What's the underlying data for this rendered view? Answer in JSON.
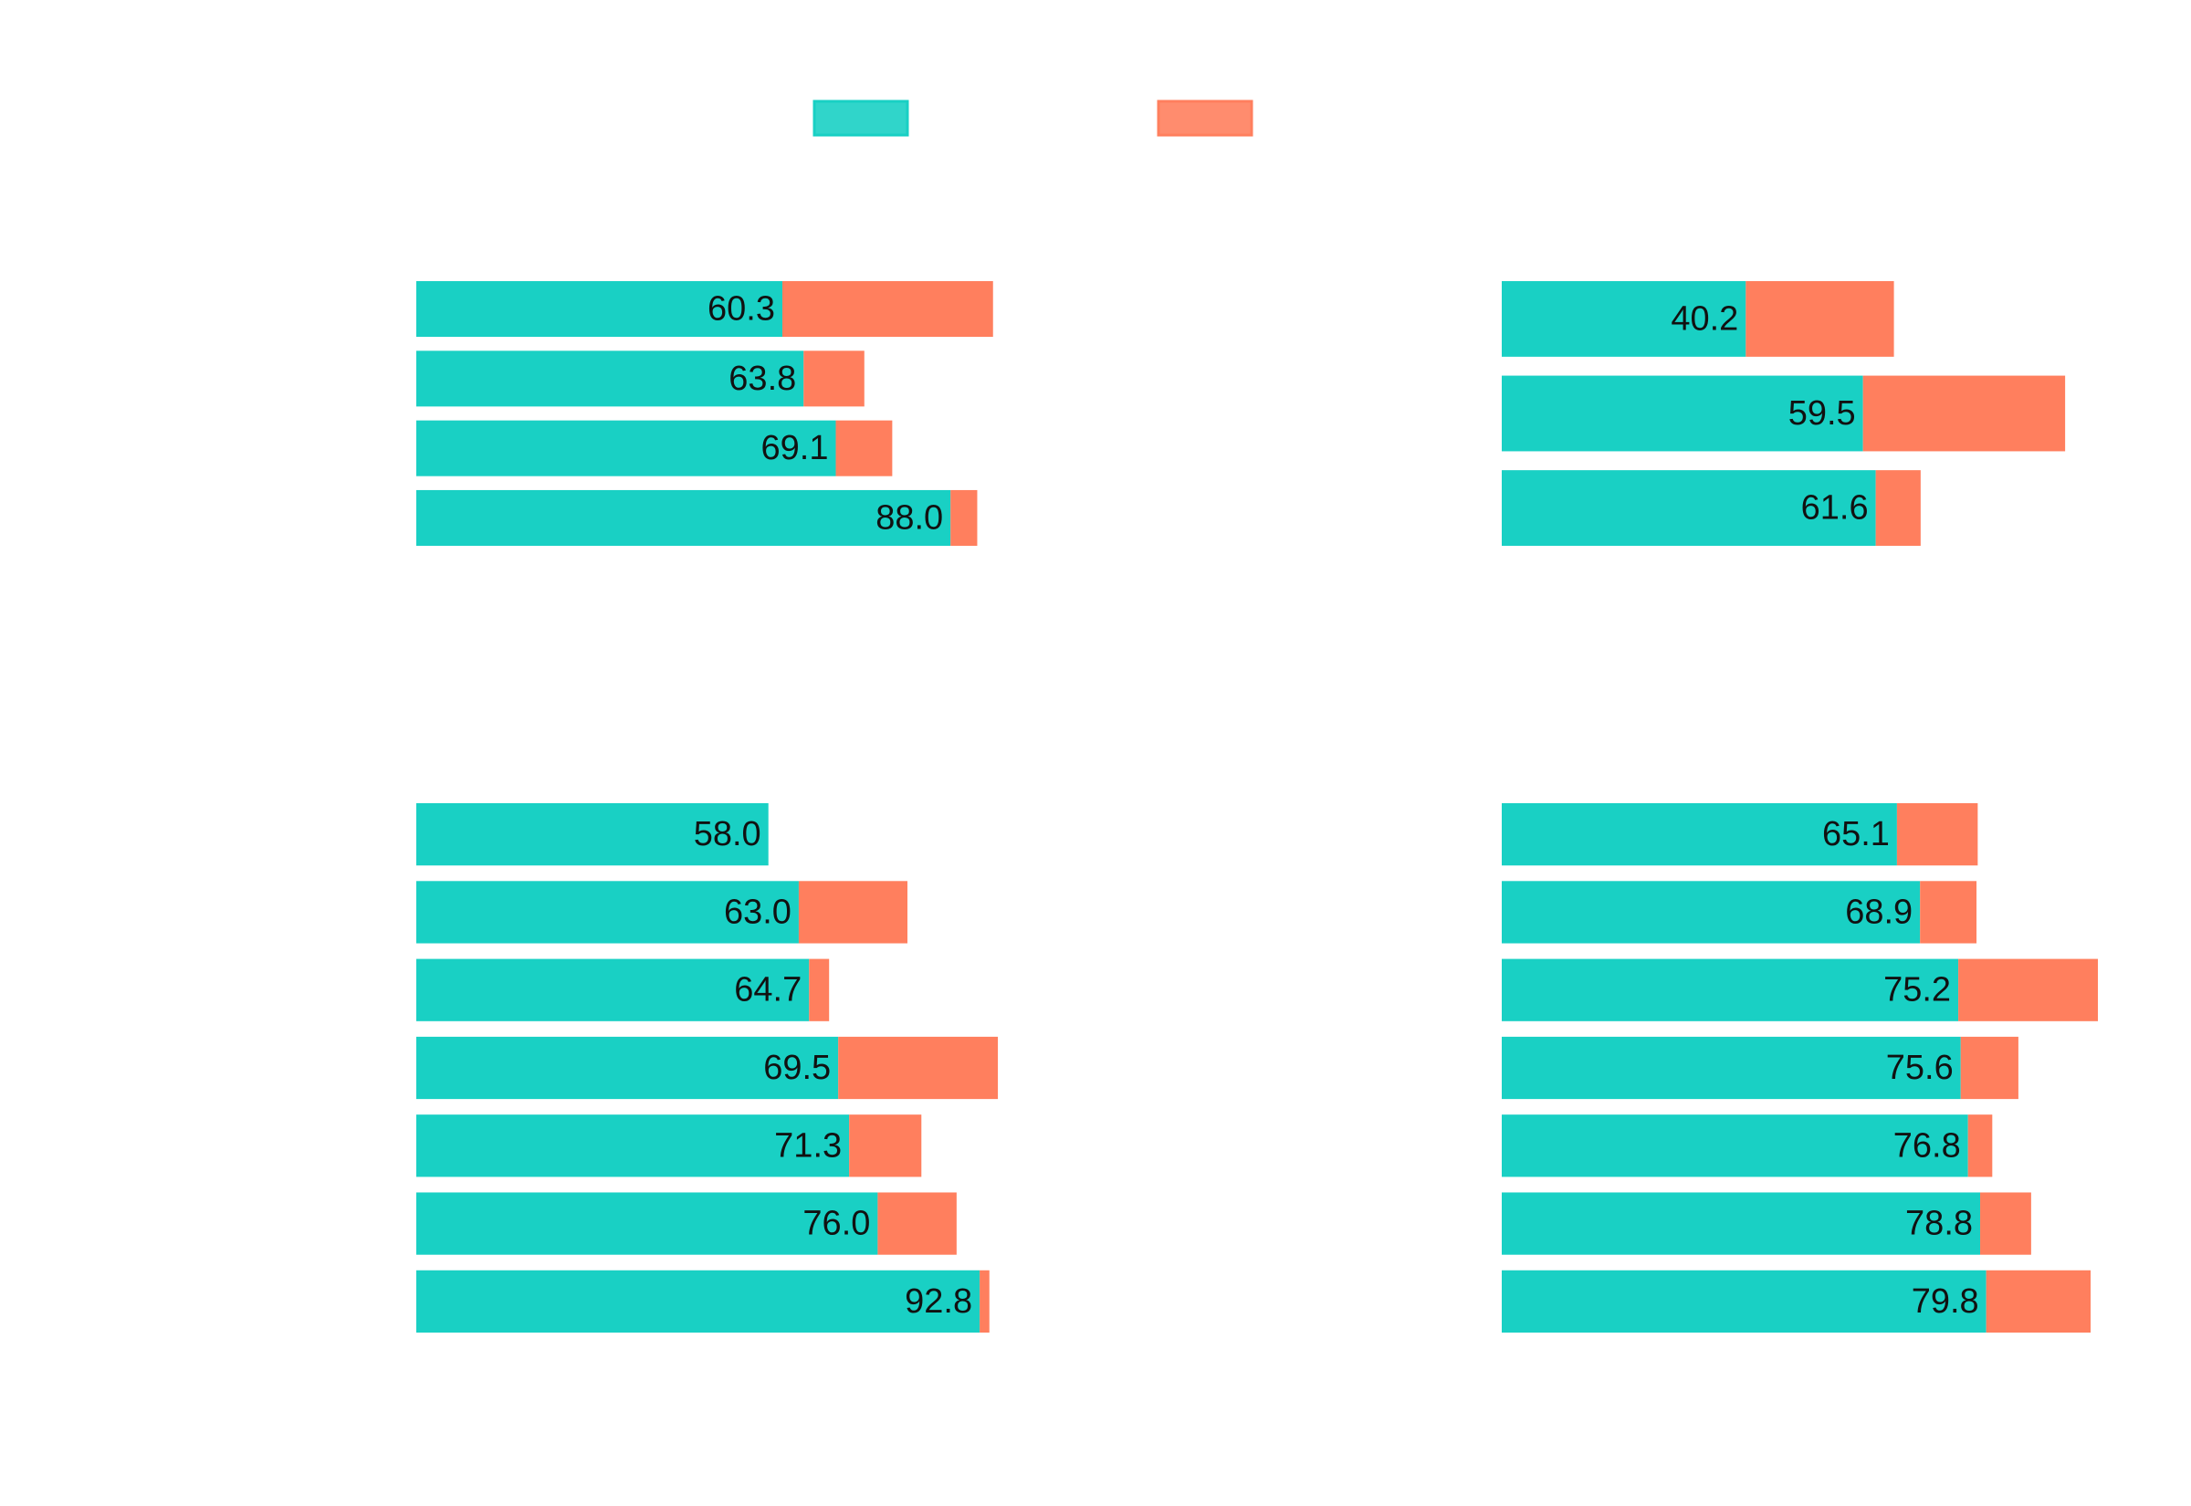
{
  "chart_data": [
    {
      "type": "bar",
      "orientation": "horizontal",
      "stacked": true,
      "xlim": [
        0,
        100
      ],
      "series": [
        {
          "color": "#19d0c4",
          "values": [
            60.3,
            63.8,
            69.1,
            88.0
          ],
          "value_labels": [
            "60.3",
            "63.8",
            "69.1",
            "88.0"
          ]
        },
        {
          "color": "#ff7f5e",
          "values": [
            34.7,
            10.0,
            9.3,
            4.4
          ]
        }
      ]
    },
    {
      "type": "bar",
      "orientation": "horizontal",
      "stacked": true,
      "xlim": [
        0,
        100
      ],
      "series": [
        {
          "color": "#19d0c4",
          "values": [
            40.2,
            59.5,
            61.6
          ],
          "value_labels": [
            "40.2",
            "59.5",
            "61.6"
          ]
        },
        {
          "color": "#ff7f5e",
          "values": [
            24.4,
            33.3,
            7.4
          ]
        }
      ]
    },
    {
      "type": "bar",
      "orientation": "horizontal",
      "stacked": true,
      "xlim": [
        0,
        100
      ],
      "series": [
        {
          "color": "#19d0c4",
          "values": [
            58.0,
            63.0,
            64.7,
            69.5,
            71.3,
            76.0,
            92.8
          ],
          "value_labels": [
            "58.0",
            "63.0",
            "64.7",
            "69.5",
            "71.3",
            "76.0",
            "92.8"
          ]
        },
        {
          "color": "#ff7f5e",
          "values": [
            0,
            17.9,
            3.3,
            26.3,
            11.9,
            13.0,
            1.6
          ]
        }
      ]
    },
    {
      "type": "bar",
      "orientation": "horizontal",
      "stacked": true,
      "xlim": [
        0,
        100
      ],
      "series": [
        {
          "color": "#19d0c4",
          "values": [
            65.1,
            68.9,
            75.2,
            75.6,
            76.8,
            78.8,
            79.8
          ],
          "value_labels": [
            "65.1",
            "68.9",
            "75.2",
            "75.6",
            "76.8",
            "78.8",
            "79.8"
          ]
        },
        {
          "color": "#ff7f5e",
          "values": [
            13.3,
            9.3,
            23.0,
            9.5,
            4.0,
            8.4,
            17.2
          ]
        }
      ]
    }
  ]
}
